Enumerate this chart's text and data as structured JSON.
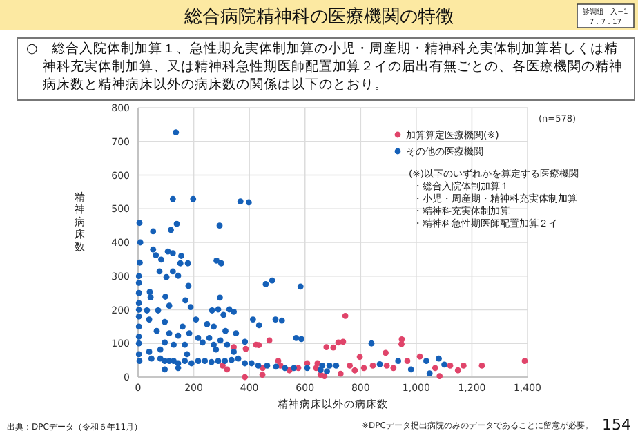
{
  "chart_data": {
    "type": "scatter",
    "title": "総合病院精神科の医療機関の特徴",
    "xlabel": "精神病床以外の病床数",
    "ylabel": "精神病床数",
    "annotations": [
      "診調組　入−1",
      "7．7．17",
      "○　総合入院体制加算１、急性期充実体制加算の小児・周産期・精神科充実体制加算若しくは精神科充実体制加算、又は精神科急性期医師配置加算２イの届出有無ごとの、各医療機関の精神病床数と精神病床以外の病床数の関係は以下のとおり。",
      "(n=578)",
      "(※)以下のいずれかを算定する医療機関",
      "・総合入院体制加算１",
      "・小児・周産期・精神科充実体制加算",
      "・精神科充実体制加算",
      "・精神科急性期医師配置加算２イ",
      "出典：DPCデータ（令和６年11月）",
      "※DPCデータ提出病院のみのデータであることに留意が必要。",
      "154"
    ],
    "xlim": [
      0,
      1400
    ],
    "xticks": [
      0,
      200,
      400,
      600,
      800,
      {
        "value": 1000,
        "label": "1,000"
      },
      {
        "value": 1200,
        "label": "1,200"
      },
      {
        "value": 1400,
        "label": "1,400"
      }
    ],
    "ylim": [
      0,
      800
    ],
    "yticks": [
      0,
      100,
      200,
      300,
      400,
      500,
      600,
      700,
      800
    ],
    "grid": true,
    "legend": "top right",
    "marker": "circle",
    "series": [
      {
        "name": "加算算定医療機関(※)",
        "color": "#e0446a",
        "x": [
          745,
          702,
          947,
          434,
          387,
          447,
          737,
          948,
          890,
          797,
          1013,
          1390,
          1236,
          1170,
          1150,
          1122,
          1068,
          968,
          918,
          894,
          844,
          812,
          779,
          761,
          728,
          670,
          645,
          1084,
          472,
          384,
          448,
          504,
          544,
          608,
          656,
          677,
          720,
          304,
          320,
          344,
          424,
          512,
          576,
          640
        ],
        "values": [
          182,
          88,
          98,
          95,
          84,
          7,
          105,
          112,
          72,
          60,
          61,
          48,
          34,
          34,
          20,
          34,
          27,
          48,
          27,
          34,
          34,
          27,
          20,
          34,
          10,
          3,
          41,
          3,
          109,
          0,
          27,
          48,
          20,
          41,
          7,
          89,
          103,
          34,
          23,
          89,
          96,
          34,
          27,
          27
        ]
      },
      {
        "name": "その他の医療機関",
        "color": "#1560b8",
        "x": [
          136,
          125,
          198,
          368,
          398,
          293,
          139,
          118,
          54,
          5,
          8,
          6,
          3,
          3,
          3,
          3,
          3,
          3,
          3,
          3,
          3,
          282,
          299,
          54,
          64,
          107,
          125,
          155,
          179,
          152,
          83,
          144,
          102,
          77,
          125,
          181,
          459,
          482,
          584,
          42,
          45,
          98,
          170,
          294,
          32,
          72,
          112,
          189,
          266,
          288,
          307,
          328,
          344,
          413,
          494,
          517,
          435,
          40,
          96,
          160,
          208,
          248,
          272,
          314,
          352,
          67,
          112,
          144,
          184,
          216,
          256,
          296,
          96,
          128,
          168,
          232,
          272,
          320,
          384,
          568,
          587,
          40,
          80,
          176,
          280,
          344,
          3,
          5,
          48,
          80,
          96,
          112,
          128,
          144,
          168,
          192,
          216,
          240,
          264,
          288,
          312,
          336,
          360,
          384,
          408,
          432,
          464,
          496,
          528,
          560,
          608,
          656,
          688,
          96,
          144,
          839,
          662,
          712,
          869,
          935,
          981,
          1048,
          1036,
          1081,
          1101,
          679
        ],
        "values": [
          727,
          529,
          529,
          522,
          519,
          450,
          455,
          437,
          433,
          458,
          400,
          340,
          300,
          280,
          250,
          220,
          200,
          180,
          150,
          120,
          100,
          346,
          338,
          379,
          362,
          373,
          368,
          360,
          338,
          338,
          349,
          301,
          297,
          314,
          314,
          271,
          276,
          287,
          269,
          253,
          237,
          239,
          228,
          236,
          198,
          198,
          212,
          208,
          198,
          201,
          185,
          201,
          194,
          171,
          171,
          168,
          154,
          171,
          164,
          150,
          171,
          157,
          150,
          137,
          130,
          137,
          130,
          123,
          130,
          116,
          116,
          109,
          103,
          96,
          96,
          103,
          96,
          96,
          105,
          116,
          113,
          75,
          82,
          68,
          82,
          75,
          68,
          48,
          55,
          55,
          48,
          48,
          48,
          41,
          48,
          41,
          48,
          48,
          45,
          48,
          48,
          51,
          55,
          41,
          41,
          34,
          34,
          31,
          27,
          27,
          27,
          21,
          34,
          23,
          27,
          100,
          34,
          34,
          38,
          48,
          23,
          11,
          48,
          55,
          37,
          17
        ]
      }
    ]
  }
}
